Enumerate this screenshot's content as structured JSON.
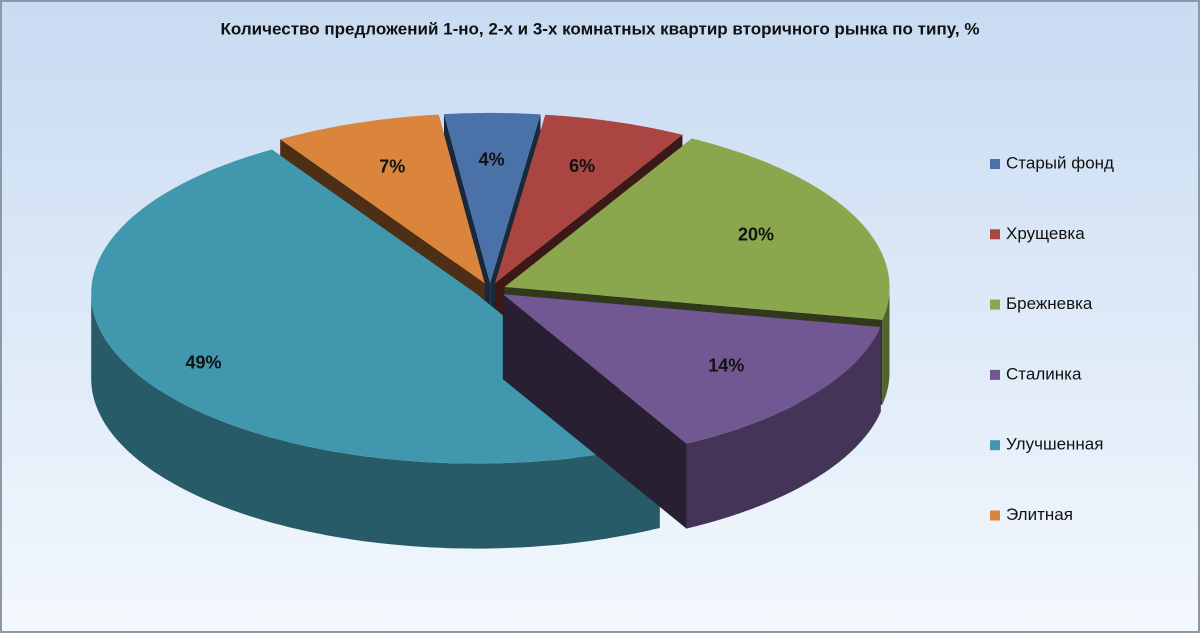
{
  "chart_data": {
    "type": "pie",
    "title": "Количество предложений 1-но, 2-х и 3-х комнатных квартир вторичного рынка по типу, %",
    "categories": [
      "Старый фонд",
      "Хрущевка",
      "Брежневка",
      "Сталинка",
      "Улучшенная",
      "Элитная"
    ],
    "values": [
      4,
      6,
      20,
      14,
      49,
      7
    ],
    "value_labels": [
      "4%",
      "6%",
      "20%",
      "14%",
      "49%",
      "7%"
    ],
    "colors": [
      "#4a71a8",
      "#ab4542",
      "#8aa74d",
      "#715892",
      "#4198ae",
      "#db853c"
    ],
    "legend": "right"
  }
}
